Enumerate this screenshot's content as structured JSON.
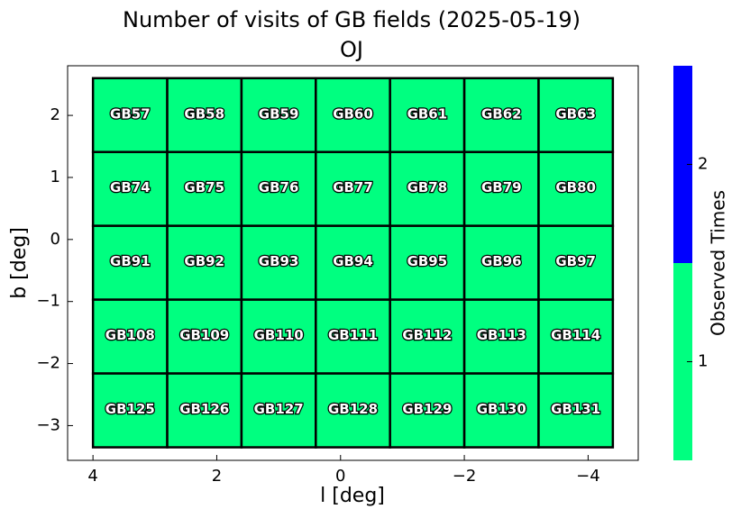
{
  "chart_data": {
    "type": "heatmap",
    "title": "Number of visits of GB fields (2025-05-19)",
    "subtitle": "OJ",
    "xlabel": "l [deg]",
    "ylabel": "b [deg]",
    "xlim": [
      4.41,
      -4.81
    ],
    "ylim": [
      -3.56,
      2.8
    ],
    "xticks": [
      4,
      2,
      0,
      {
        "value": -2,
        "label": "−2"
      },
      {
        "value": -4,
        "label": "−4"
      }
    ],
    "yticks": [
      2,
      1,
      0,
      {
        "value": -1,
        "label": "−1"
      },
      {
        "value": -2,
        "label": "−2"
      },
      {
        "value": -3,
        "label": "−3"
      }
    ],
    "x_edges": [
      4.0,
      2.8,
      1.6,
      0.4,
      -0.8,
      -2.0,
      -3.2,
      -4.4
    ],
    "y_edges": [
      2.6,
      1.41,
      0.22,
      -0.97,
      -2.16,
      -3.35
    ],
    "cells": [
      [
        "GB57",
        "GB58",
        "GB59",
        "GB60",
        "GB61",
        "GB62",
        "GB63"
      ],
      [
        "GB74",
        "GB75",
        "GB76",
        "GB77",
        "GB78",
        "GB79",
        "GB80"
      ],
      [
        "GB91",
        "GB92",
        "GB93",
        "GB94",
        "GB95",
        "GB96",
        "GB97"
      ],
      [
        "GB108",
        "GB109",
        "GB110",
        "GB111",
        "GB112",
        "GB113",
        "GB114"
      ],
      [
        "GB125",
        "GB126",
        "GB127",
        "GB128",
        "GB129",
        "GB130",
        "GB131"
      ]
    ],
    "values": [
      [
        1,
        1,
        1,
        1,
        1,
        1,
        1
      ],
      [
        1,
        1,
        1,
        1,
        1,
        1,
        1
      ],
      [
        1,
        1,
        1,
        1,
        1,
        1,
        1
      ],
      [
        1,
        1,
        1,
        1,
        1,
        1,
        1
      ],
      [
        1,
        1,
        1,
        1,
        1,
        1,
        1
      ]
    ],
    "colorbar": {
      "label": "Observed Times",
      "bounds": [
        0.5,
        1.5,
        2.5
      ],
      "colors": [
        "#00ff80",
        "#0000ff"
      ],
      "ticks": [
        1,
        2
      ]
    }
  }
}
